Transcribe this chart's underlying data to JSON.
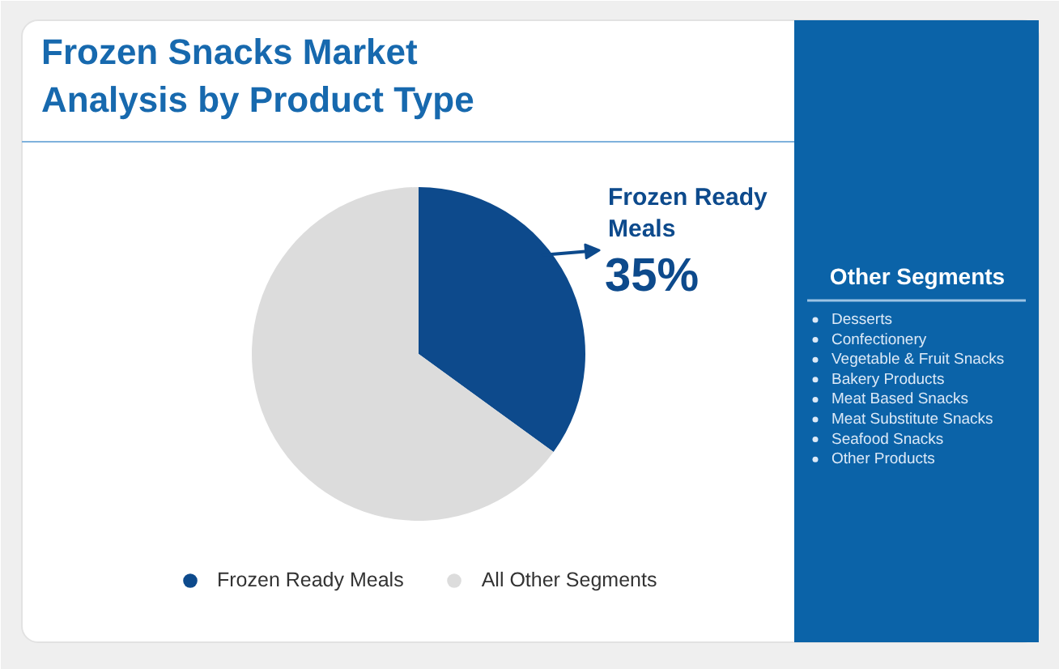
{
  "chart_data": {
    "type": "pie",
    "title": "Frozen Snacks Market Analysis by Product Type",
    "categories": [
      "Frozen Ready Meals",
      "All Other Segments"
    ],
    "values": [
      35,
      65
    ],
    "colors": [
      "#0d4a8c",
      "#dcdcdc"
    ],
    "value_labels": [
      "35%",
      null
    ],
    "legend": "bottom",
    "annotations": [
      "Other Segments",
      "Desserts",
      "Confectionery",
      "Vegetable & Fruit Snacks",
      "Bakery Products",
      "Meat Based Snacks",
      "Meat Substitute Snacks",
      "Seafood Snacks",
      "Other Products"
    ]
  }
}
